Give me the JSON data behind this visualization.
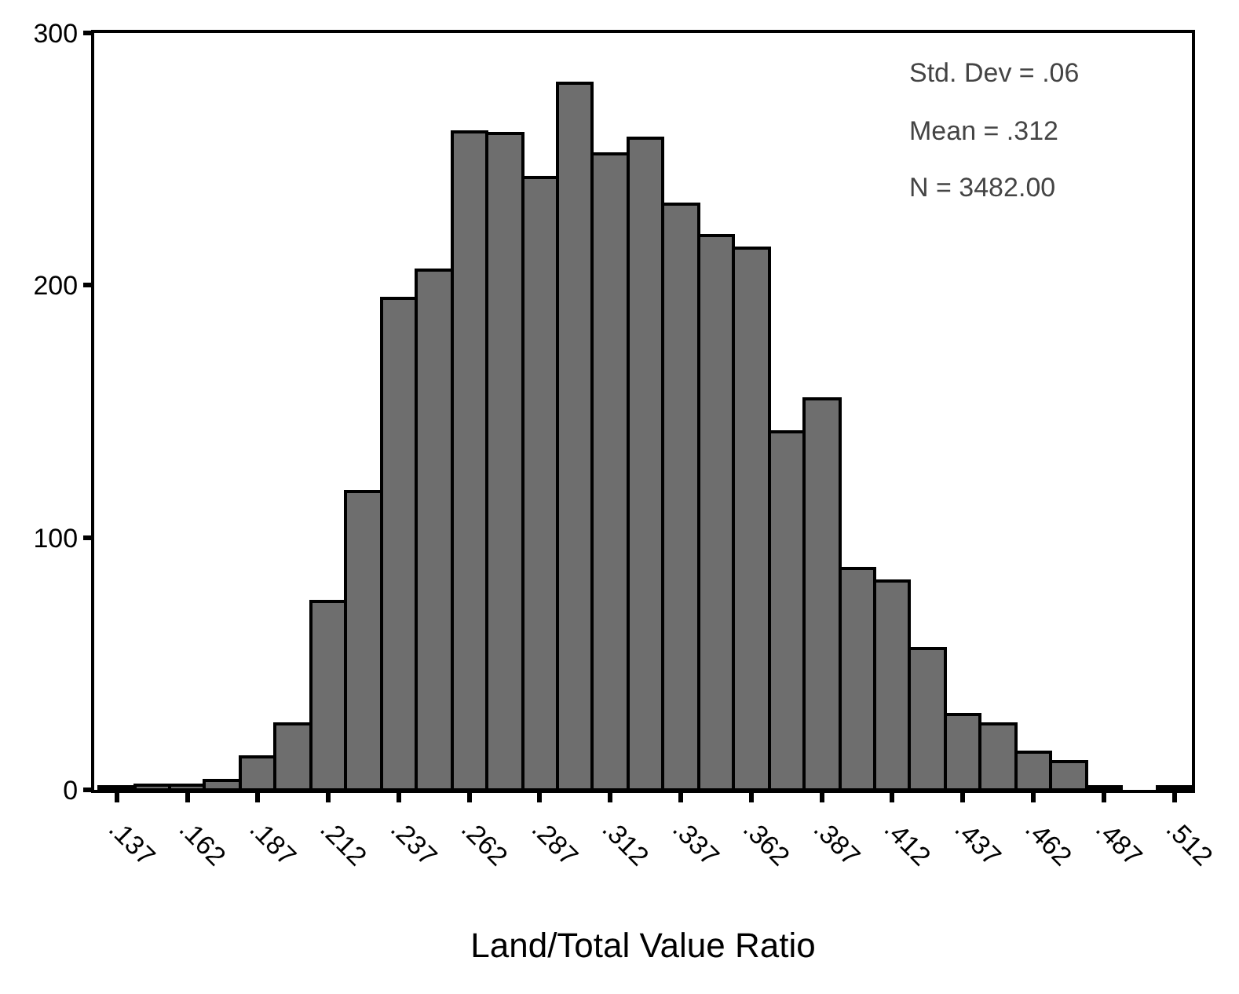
{
  "chart_data": {
    "type": "histogram",
    "xlabel": "Land/Total Value Ratio",
    "bins": [
      0.13125,
      0.14375,
      0.15625,
      0.16875,
      0.18125,
      0.19375,
      0.20625,
      0.21875,
      0.23125,
      0.24375,
      0.25625,
      0.26875,
      0.28125,
      0.29375,
      0.30625,
      0.31875,
      0.33125,
      0.34375,
      0.35625,
      0.36875,
      0.38125,
      0.39375,
      0.40625,
      0.41875,
      0.43125,
      0.44375,
      0.45625,
      0.46875,
      0.48125,
      0.49375,
      0.50625,
      0.51875
    ],
    "values": [
      1,
      2,
      2,
      4,
      13,
      26,
      75,
      118,
      195,
      206,
      261,
      260,
      243,
      280,
      252,
      258,
      232,
      220,
      215,
      142,
      155,
      88,
      83,
      56,
      30,
      26,
      15,
      11,
      1,
      0,
      1
    ],
    "color": "#6e6e6e",
    "xlim": [
      0.1295,
      0.51875
    ],
    "xticks": [
      {
        "value": 0.1375,
        "label": ".137"
      },
      {
        "value": 0.1625,
        "label": ".162"
      },
      {
        "value": 0.1875,
        "label": ".187"
      },
      {
        "value": 0.2125,
        "label": ".212"
      },
      {
        "value": 0.2375,
        "label": ".237"
      },
      {
        "value": 0.2625,
        "label": ".262"
      },
      {
        "value": 0.2875,
        "label": ".287"
      },
      {
        "value": 0.3125,
        "label": ".312"
      },
      {
        "value": 0.3375,
        "label": ".337"
      },
      {
        "value": 0.3625,
        "label": ".362"
      },
      {
        "value": 0.3875,
        "label": ".387"
      },
      {
        "value": 0.4125,
        "label": ".412"
      },
      {
        "value": 0.4375,
        "label": ".437"
      },
      {
        "value": 0.4625,
        "label": ".462"
      },
      {
        "value": 0.4875,
        "label": ".487"
      },
      {
        "value": 0.5125,
        "label": ".512"
      }
    ],
    "ylim": [
      0,
      300
    ],
    "yticks": [
      0,
      100,
      200,
      300
    ],
    "annotations": [
      "Std. Dev = .06",
      "Mean = .312",
      "N = 3482.00"
    ]
  }
}
